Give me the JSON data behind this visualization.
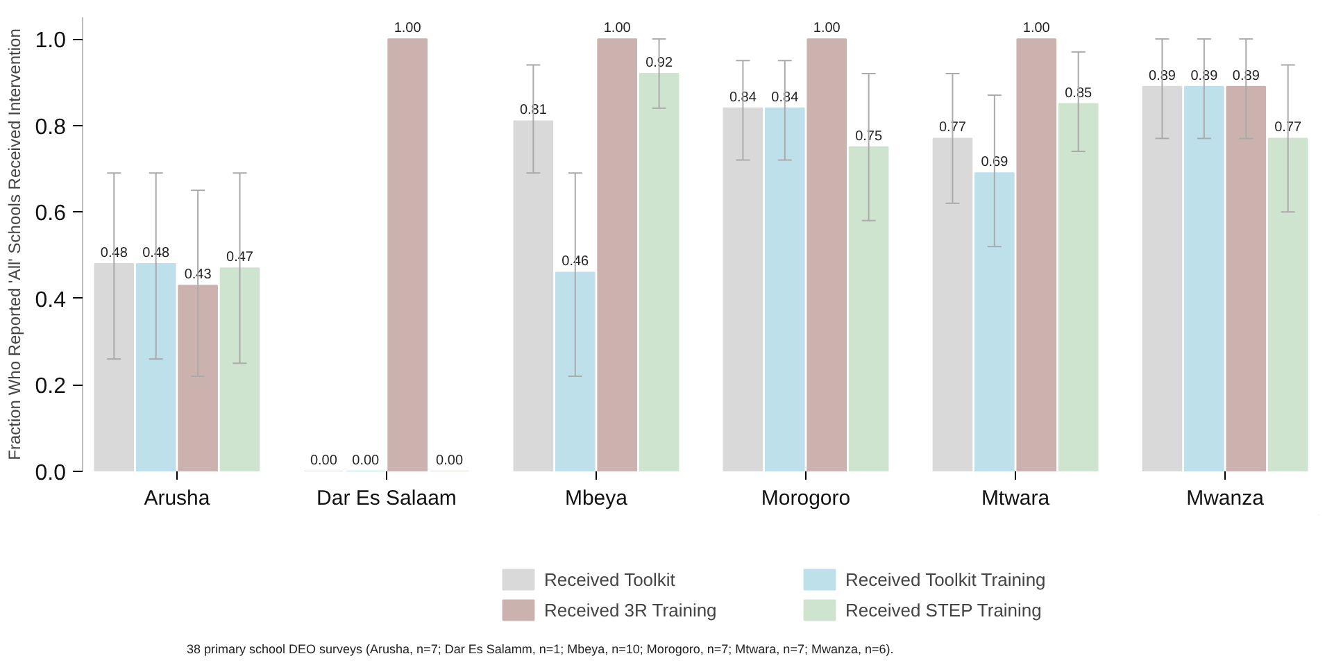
{
  "chart_data": {
    "type": "bar",
    "ylabel": "Fraction Who Reported 'All' Schools Received Intervention",
    "categories": [
      "Arusha",
      "Dar Es Salaam",
      "Mbeya",
      "Morogoro",
      "Mtwara",
      "Mwanza"
    ],
    "ylim": [
      0,
      1.05
    ],
    "yticks": [
      {
        "value": 0,
        "label": "0.0"
      },
      {
        "value": 0.2,
        "label": "0.2"
      },
      {
        "value": 0.4,
        "label": "0.4"
      },
      {
        "value": 0.6,
        "label": "0.6"
      },
      {
        "value": 0.8,
        "label": "0.8"
      },
      {
        "value": 1,
        "label": "1.0"
      }
    ],
    "series": [
      {
        "name": "Received Toolkit",
        "color": "#d9d9d9",
        "values": [
          0.48,
          0,
          0.81,
          0.84,
          0.77,
          0.89
        ],
        "value_labels": [
          "0.48",
          "0.00",
          "0.81",
          "0.84",
          "0.77",
          "0.89"
        ],
        "errors": [
          [
            0.26,
            0.69
          ],
          null,
          [
            0.69,
            0.94
          ],
          [
            0.72,
            0.95
          ],
          [
            0.62,
            0.92
          ],
          [
            0.77,
            1.0
          ]
        ]
      },
      {
        "name": "Received Toolkit Training",
        "color": "#bde0ea",
        "values": [
          0.48,
          0,
          0.46,
          0.84,
          0.69,
          0.89
        ],
        "value_labels": [
          "0.48",
          "0.00",
          "0.46",
          "0.84",
          "0.69",
          "0.89"
        ],
        "errors": [
          [
            0.26,
            0.69
          ],
          null,
          [
            0.22,
            0.69
          ],
          [
            0.72,
            0.95
          ],
          [
            0.52,
            0.87
          ],
          [
            0.77,
            1.0
          ]
        ]
      },
      {
        "name": "Received 3R Training",
        "color": "#cbb2ae",
        "values": [
          0.43,
          1,
          1,
          1,
          1,
          0.89
        ],
        "value_labels": [
          "0.43",
          "1.00",
          "1.00",
          "1.00",
          "1.00",
          "0.89"
        ],
        "errors": [
          [
            0.22,
            0.65
          ],
          null,
          null,
          null,
          null,
          [
            0.77,
            1.0
          ]
        ]
      },
      {
        "name": "Received STEP Training",
        "color": "#cfe4cf",
        "values": [
          0.47,
          0,
          0.92,
          0.75,
          0.85,
          0.77
        ],
        "value_labels": [
          "0.47",
          "0.00",
          "0.92",
          "0.75",
          "0.85",
          "0.77"
        ],
        "errors": [
          [
            0.25,
            0.69
          ],
          null,
          [
            0.84,
            1.0
          ],
          [
            0.58,
            0.92
          ],
          [
            0.74,
            0.97
          ],
          [
            0.6,
            0.94
          ]
        ]
      }
    ],
    "grid": false,
    "legend": "bottom",
    "annotations": [
      "38 primary school DEO surveys (Arusha, n=7; Dar Es Salamm, n=1; Mbeya, n=10; Morogoro, n=7; Mtwara, n=7; Mwanza, n=6)."
    ]
  }
}
